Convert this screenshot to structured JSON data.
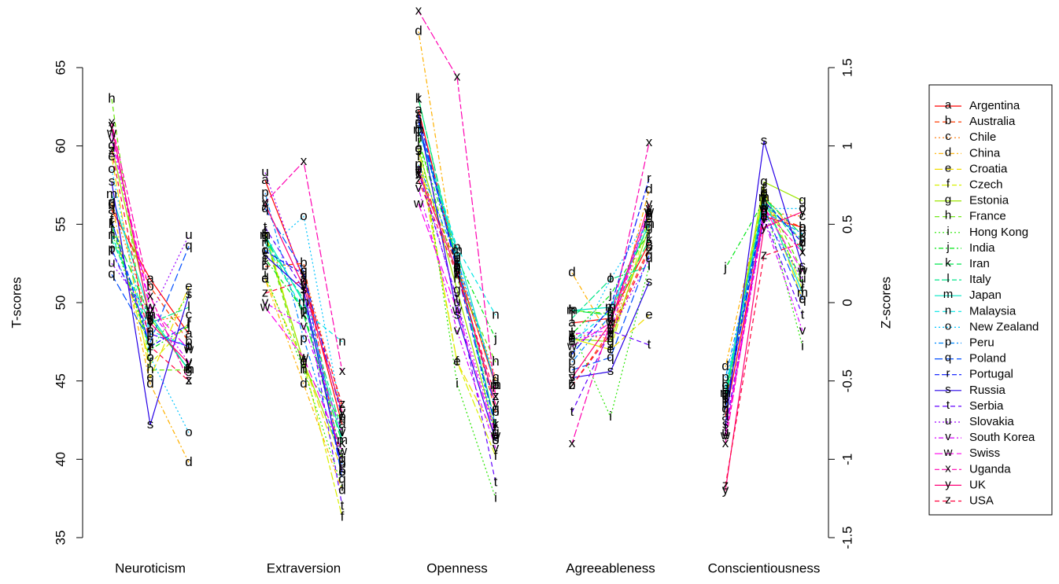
{
  "chart_data": {
    "type": "line",
    "y_label": "T-scores",
    "y2_label": "Z-scores",
    "categories": [
      null,
      "Neuroticism",
      null,
      null,
      "Extraversion",
      null,
      null,
      "Openness",
      null,
      null,
      "Agreeableness",
      null,
      null,
      "Conscientiousness",
      null
    ],
    "groups": 5,
    "ylim": [
      35,
      65
    ],
    "yticks": [
      35,
      40,
      45,
      50,
      55,
      60,
      65
    ],
    "y2lim": [
      -1.5,
      1.5
    ],
    "y2ticks": [
      -1.5,
      -1,
      -0.5,
      0,
      0.5,
      1,
      1.5
    ],
    "legend": "right",
    "series": [
      {
        "name": "Argentina",
        "marker": "a",
        "color": "#ff0000",
        "dash": "solid",
        "values": [
          55.9,
          51.5,
          48.0,
          57.8,
          51.5,
          42.2,
          62.3,
          52.3,
          44.7,
          48.7,
          49.0,
          53.8,
          42.7,
          55.5,
          54.8
        ]
      },
      {
        "name": "Australia",
        "marker": "b",
        "color": "#ff3b00",
        "dash": "dashed",
        "values": [
          56.2,
          51.0,
          47.5,
          52.3,
          52.5,
          39.2,
          58.5,
          52.3,
          43.0,
          44.7,
          48.2,
          53.5,
          43.5,
          55.8,
          54.8
        ]
      },
      {
        "name": "Chile",
        "marker": "c",
        "color": "#ff7600",
        "dash": "dotted",
        "values": [
          56.4,
          48.8,
          49.2,
          52.8,
          52.0,
          43.2,
          58.2,
          52.5,
          45.2,
          48.0,
          47.7,
          55.8,
          44.7,
          55.8,
          55.5
        ]
      },
      {
        "name": "China",
        "marker": "d",
        "color": "#ffb100",
        "dash": "dotdash",
        "values": [
          56.3,
          44.8,
          39.8,
          51.5,
          44.8,
          38.0,
          67.3,
          52.0,
          45.0,
          51.9,
          47.7,
          57.2,
          45.9,
          56.9,
          53.8
        ]
      },
      {
        "name": "Croatia",
        "marker": "e",
        "color": "#f0dc00",
        "dash": "longdash",
        "values": [
          59.3,
          45.2,
          51.0,
          51.5,
          46.2,
          39.2,
          59.8,
          46.2,
          41.5,
          47.7,
          47.0,
          49.2,
          44.2,
          57.0,
          50.2
        ]
      },
      {
        "name": "Czech",
        "marker": "f",
        "color": "#d8f000",
        "dash": "twodash",
        "values": [
          55.3,
          46.1,
          48.7,
          54.5,
          46.2,
          36.3,
          59.3,
          46.2,
          40.2,
          47.7,
          47.0,
          55.5,
          43.7,
          57.3,
          50.8
        ]
      },
      {
        "name": "Estonia",
        "marker": "g",
        "color": "#9de600",
        "dash": "solid",
        "values": [
          60.0,
          49.0,
          45.7,
          54.3,
          46.2,
          40.0,
          59.8,
          50.8,
          41.7,
          47.7,
          47.5,
          54.8,
          44.0,
          57.7,
          56.5
        ]
      },
      {
        "name": "France",
        "marker": "h",
        "color": "#62e600",
        "dash": "dashed",
        "values": [
          63.0,
          45.7,
          45.7,
          54.3,
          45.7,
          42.5,
          60.5,
          51.5,
          46.2,
          49.5,
          49.3,
          55.0,
          44.2,
          57.0,
          52.0
        ]
      },
      {
        "name": "Hong Kong",
        "marker": "i",
        "color": "#27e600",
        "dash": "dotted",
        "values": [
          54.5,
          47.0,
          50.5,
          51.8,
          45.7,
          38.2,
          60.8,
          44.8,
          37.5,
          48.2,
          42.7,
          52.3,
          43.7,
          56.5,
          47.2
        ]
      },
      {
        "name": "India",
        "marker": "j",
        "color": "#00e614",
        "dash": "dotdash",
        "values": [
          54.9,
          47.0,
          48.5,
          52.8,
          49.5,
          40.2,
          60.3,
          52.8,
          47.7,
          48.0,
          50.5,
          54.5,
          52.2,
          56.5,
          51.3
        ]
      },
      {
        "name": "Iran",
        "marker": "k",
        "color": "#00e64e",
        "dash": "longdash",
        "values": [
          55.0,
          49.0,
          45.7,
          54.3,
          49.2,
          41.0,
          63.0,
          52.5,
          42.2,
          49.5,
          49.2,
          54.0,
          44.0,
          56.7,
          54.3
        ]
      },
      {
        "name": "Italy",
        "marker": "l",
        "color": "#00e689",
        "dash": "twodash",
        "values": [
          54.0,
          48.7,
          49.7,
          54.0,
          50.2,
          41.7,
          63.0,
          52.3,
          42.2,
          49.0,
          51.5,
          52.3,
          43.7,
          56.8,
          53.3
        ]
      },
      {
        "name": "Japan",
        "marker": "m",
        "color": "#00e6c4",
        "dash": "solid",
        "values": [
          56.9,
          49.2,
          45.7,
          54.3,
          50.0,
          41.2,
          61.0,
          53.3,
          44.7,
          49.5,
          49.7,
          55.0,
          44.2,
          56.7,
          50.6
        ]
      },
      {
        "name": "Malaysia",
        "marker": "n",
        "color": "#00e6e6",
        "dash": "dashed",
        "values": [
          54.3,
          48.2,
          47.2,
          53.8,
          49.5,
          47.5,
          61.3,
          53.5,
          49.2,
          47.5,
          49.5,
          55.4,
          44.5,
          56.3,
          54.0
        ]
      },
      {
        "name": "New Zealand",
        "marker": "o",
        "color": "#00c4ff",
        "dash": "dotted",
        "values": [
          58.5,
          46.5,
          41.7,
          53.3,
          55.5,
          42.7,
          61.0,
          53.0,
          41.2,
          46.7,
          51.5,
          55.5,
          44.7,
          56.0,
          56.0
        ]
      },
      {
        "name": "Peru",
        "marker": "p",
        "color": "#0089ff",
        "dash": "dotdash",
        "values": [
          53.4,
          48.0,
          47.2,
          57.0,
          47.7,
          39.7,
          58.8,
          52.8,
          44.7,
          46.2,
          49.2,
          55.7,
          45.2,
          55.8,
          54.4
        ]
      },
      {
        "name": "Poland",
        "marker": "q",
        "color": "#004eff",
        "dash": "longdash",
        "values": [
          51.8,
          47.5,
          53.6,
          56.0,
          52.0,
          38.7,
          61.5,
          52.3,
          43.2,
          45.7,
          46.5,
          53.0,
          43.2,
          56.0,
          50.2
        ]
      },
      {
        "name": "Portugal",
        "marker": "r",
        "color": "#0014ff",
        "dash": "twodash",
        "values": [
          55.2,
          47.2,
          48.6,
          53.3,
          51.8,
          42.7,
          62.0,
          52.0,
          42.0,
          46.7,
          49.7,
          57.9,
          43.2,
          56.5,
          53.8
        ]
      },
      {
        "name": "Russia",
        "marker": "s",
        "color": "#2700e6",
        "dash": "solid",
        "values": [
          57.7,
          42.2,
          50.5,
          53.0,
          50.8,
          39.2,
          61.8,
          49.2,
          41.2,
          45.2,
          45.6,
          51.3,
          42.2,
          60.3,
          52.3
        ]
      },
      {
        "name": "Serbia",
        "marker": "t",
        "color": "#6200ff",
        "dash": "dashed",
        "values": [
          53.3,
          48.0,
          47.2,
          54.8,
          50.8,
          37.0,
          58.3,
          50.2,
          38.5,
          43.0,
          48.2,
          47.3,
          42.0,
          55.4,
          49.2
        ]
      },
      {
        "name": "Slovakia",
        "marker": "u",
        "color": "#9d00ff",
        "dash": "dotted",
        "values": [
          52.5,
          49.2,
          54.3,
          58.3,
          51.3,
          39.7,
          58.7,
          50.0,
          41.7,
          47.7,
          48.0,
          52.8,
          41.7,
          55.5,
          51.5
        ]
      },
      {
        "name": "South Korea",
        "marker": "v",
        "color": "#d800ff",
        "dash": "dotdash",
        "values": [
          60.4,
          49.5,
          46.2,
          50.0,
          48.5,
          41.7,
          57.3,
          48.2,
          40.7,
          48.0,
          48.2,
          56.0,
          41.5,
          55.3,
          48.2
        ]
      },
      {
        "name": "Swiss",
        "marker": "w",
        "color": "#ff00ec",
        "dash": "longdash",
        "values": [
          60.8,
          49.7,
          47.0,
          49.7,
          46.5,
          40.5,
          56.3,
          49.5,
          41.5,
          47.2,
          48.7,
          55.8,
          41.5,
          56.0,
          52.0
        ]
      },
      {
        "name": "Uganda",
        "marker": "x",
        "color": "#ff00b1",
        "dash": "twodash",
        "values": [
          61.5,
          50.4,
          45.0,
          56.4,
          59.0,
          45.6,
          68.6,
          64.4,
          44.0,
          41.0,
          48.8,
          60.2,
          41.0,
          56.0,
          53.2
        ]
      },
      {
        "name": "UK",
        "marker": "y",
        "color": "#ff0076",
        "dash": "solid",
        "values": [
          61.3,
          48.7,
          46.1,
          56.3,
          51.0,
          43.0,
          58.3,
          52.0,
          43.5,
          45.2,
          48.7,
          56.3,
          38.0,
          54.8,
          55.8
        ]
      },
      {
        "name": "USA",
        "marker": "z",
        "color": "#ff003b",
        "dash": "dashed",
        "values": [
          59.7,
          47.2,
          45.0,
          50.6,
          51.4,
          43.5,
          57.8,
          51.8,
          44.0,
          44.7,
          48.0,
          53.3,
          38.3,
          53.0,
          53.8
        ]
      }
    ]
  }
}
